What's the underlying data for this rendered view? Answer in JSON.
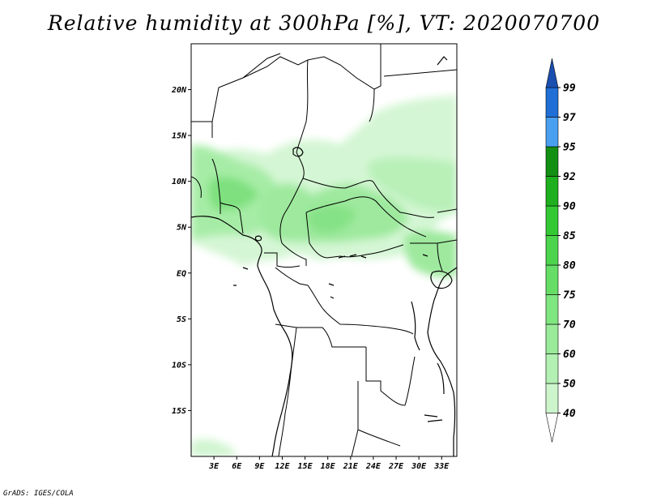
{
  "title": "Relative humidity at 300hPa [%], VT: 2020070700",
  "credit": "GrADS: IGES/COLA",
  "map": {
    "lat_labels": [
      "20N",
      "15N",
      "10N",
      "5N",
      "EQ",
      "5S",
      "10S",
      "15S"
    ],
    "lat_values": [
      20,
      15,
      10,
      5,
      0,
      -5,
      -10,
      -15
    ],
    "lon_labels": [
      "3E",
      "6E",
      "9E",
      "12E",
      "15E",
      "18E",
      "21E",
      "24E",
      "27E",
      "30E",
      "33E"
    ],
    "lon_values": [
      3,
      6,
      9,
      12,
      15,
      18,
      21,
      24,
      27,
      30,
      33
    ],
    "lon_range": [
      0,
      35
    ],
    "lat_range": [
      -20,
      25
    ]
  },
  "colorbar": {
    "levels": [
      "40",
      "50",
      "60",
      "70",
      "75",
      "80",
      "85",
      "90",
      "92",
      "95",
      "97",
      "99"
    ],
    "colors": [
      "#e6fae6",
      "#ccf5cc",
      "#b3f0b3",
      "#99eb99",
      "#80e680",
      "#66de66",
      "#4dd44d",
      "#33c933",
      "#1fb01f",
      "#138f13",
      "#4aa0f0",
      "#1f6fd6",
      "#1a4fb0"
    ]
  }
}
